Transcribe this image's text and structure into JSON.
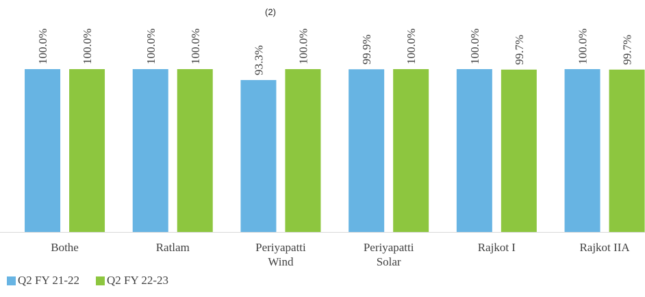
{
  "chart_data": {
    "type": "bar",
    "categories": [
      "Bothe",
      "Ratlam",
      "Periyapatti Wind",
      "Periyapatti Solar",
      "Rajkot I",
      "Rajkot IIA"
    ],
    "series": [
      {
        "name": "Q2 FY 21-22",
        "color": "#67b4e3",
        "values": [
          100,
          100,
          93.3,
          99.9,
          100,
          100
        ],
        "value_labels": [
          "100.0%",
          "100.0%",
          "93.3%",
          "99.9%",
          "100.0%",
          "100.0%"
        ]
      },
      {
        "name": "Q2 FY 22-23",
        "color": "#8dc63f",
        "values": [
          100,
          100,
          100,
          100,
          99.7,
          99.7
        ],
        "value_labels": [
          "100.0%",
          "100.0%",
          "100.0%",
          "100.0%",
          "99.7%",
          "99.7%"
        ]
      }
    ],
    "annotations": [
      "(2)"
    ],
    "ylim": [
      0,
      100
    ],
    "legend": "bottom-left"
  }
}
